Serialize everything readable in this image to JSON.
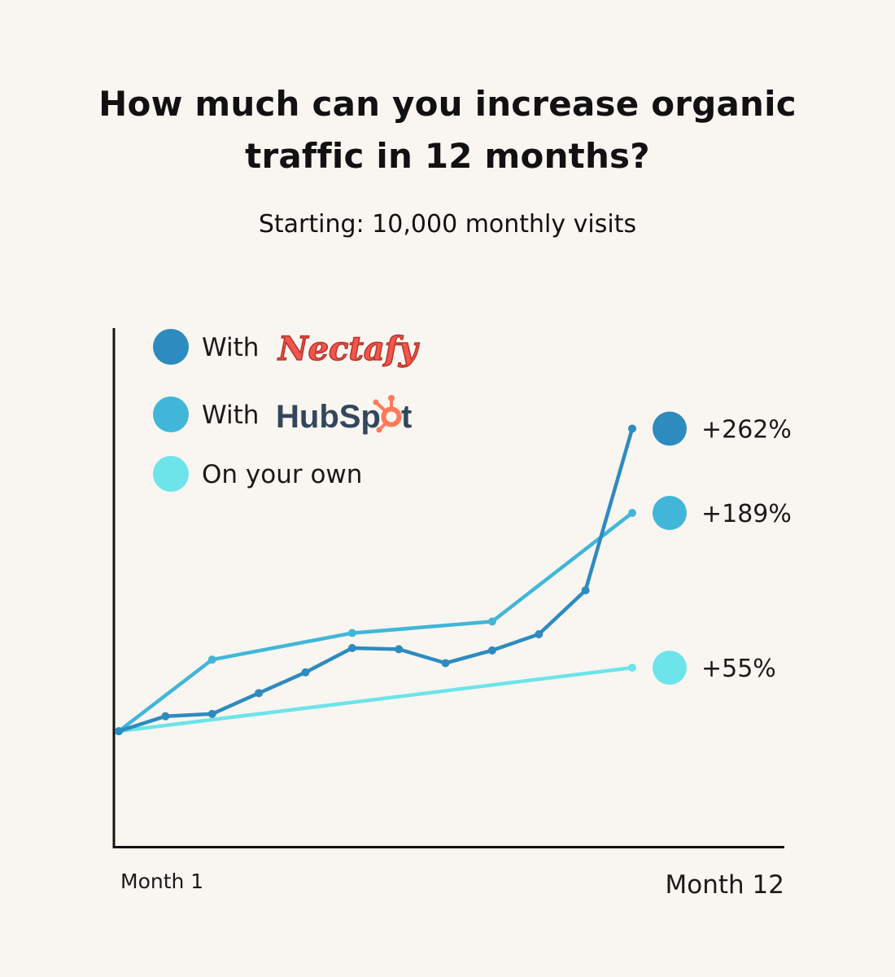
{
  "header": {
    "title_line1": "How much can you increase organic",
    "title_line2": "traffic in 12 months?",
    "subtitle": "Starting: 10,000 monthly visits"
  },
  "legend": {
    "nectafy_prefix": "With",
    "nectafy_brand": "Nectafy",
    "hubspot_prefix": "With",
    "hubspot_brand_a": "HubSp",
    "hubspot_brand_b": "t",
    "own": "On your own"
  },
  "colors": {
    "background": "#f9f6f1",
    "nectafy": "#2e8bbf",
    "hubspot": "#42b6d8",
    "own": "#6ce4ea",
    "axis": "#111111",
    "nectafy_logo": "#f0574a",
    "hubspot_text": "#33475b",
    "hubspot_sprocket": "#ff7a59"
  },
  "chart_data": {
    "type": "line",
    "title": "How much can you increase organic traffic in 12 months?",
    "subtitle": "Starting: 10,000 monthly visits",
    "xlabel": "",
    "ylabel": "",
    "xlim": [
      1,
      12.6
    ],
    "ylim": [
      0,
      4.3
    ],
    "x_tick_labels": {
      "start": "Month 1",
      "end": "Month 12"
    },
    "grid": false,
    "legend_position": "top-left",
    "series": [
      {
        "name": "With Nectafy",
        "key": "nectafy",
        "x": [
          1,
          2,
          3,
          4,
          5,
          6,
          7,
          8,
          9,
          10,
          11,
          12
        ],
        "y": [
          1.0,
          1.13,
          1.15,
          1.33,
          1.51,
          1.72,
          1.71,
          1.59,
          1.7,
          1.84,
          2.22,
          3.62
        ],
        "end_label": "+262%"
      },
      {
        "name": "With HubSpot",
        "key": "hubspot",
        "x": [
          1,
          3,
          6,
          9,
          12
        ],
        "y": [
          1.0,
          1.62,
          1.85,
          1.95,
          2.89
        ],
        "end_label": "+189%"
      },
      {
        "name": "On your own",
        "key": "own",
        "x": [
          1,
          12
        ],
        "y": [
          1.0,
          1.55
        ],
        "end_label": "+55%"
      }
    ]
  }
}
